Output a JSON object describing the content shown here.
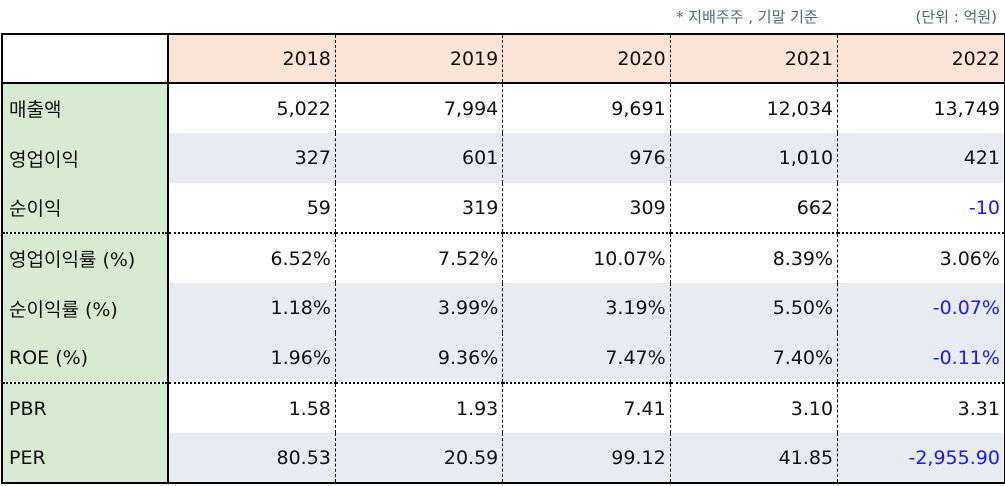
{
  "notes": {
    "basis": "* 지배주주 , 기말 기준",
    "unit": "(단위 : 억원)"
  },
  "table": {
    "years": [
      "2018",
      "2019",
      "2020",
      "2021",
      "2022"
    ],
    "rows": [
      {
        "label": "매출액",
        "values": [
          "5,022",
          "7,994",
          "9,691",
          "12,034",
          "13,749"
        ]
      },
      {
        "label": "영업이익",
        "values": [
          "327",
          "601",
          "976",
          "1,010",
          "421"
        ]
      },
      {
        "label": "순이익",
        "values": [
          "59",
          "319",
          "309",
          "662",
          "-10"
        ]
      },
      {
        "label": "영업이익률 (%)",
        "values": [
          "6.52%",
          "7.52%",
          "10.07%",
          "8.39%",
          "3.06%"
        ]
      },
      {
        "label": "순이익률 (%)",
        "values": [
          "1.18%",
          "3.99%",
          "3.19%",
          "5.50%",
          "-0.07%"
        ]
      },
      {
        "label": "ROE (%)",
        "values": [
          "1.96%",
          "9.36%",
          "7.47%",
          "7.40%",
          "-0.11%"
        ]
      },
      {
        "label": "PBR",
        "values": [
          "1.58",
          "1.93",
          "7.41",
          "3.10",
          "3.31"
        ]
      },
      {
        "label": "PER",
        "values": [
          "80.53",
          "20.59",
          "99.12",
          "41.85",
          "-2,955.90"
        ]
      }
    ]
  },
  "colors": {
    "header_bg": "#fce4d6",
    "label_bg": "#d9ead3",
    "alt_row_bg": "#e8ecf2",
    "negative_text": "#1a1aff",
    "note_text": "#4a6a80"
  }
}
